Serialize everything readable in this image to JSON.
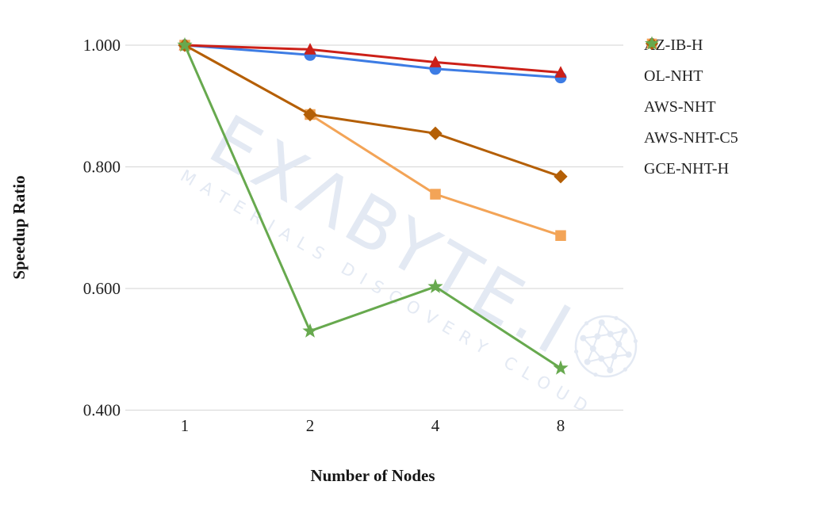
{
  "watermark": {
    "text": "EXΛBYTE.I",
    "logo": "molecule-ball",
    "subtext": "MATERIALS DISCOVERY CLOUD",
    "color": "#e3e9f3"
  },
  "legend": {
    "position": "right",
    "items": [
      "AZ-IB-H",
      "OL-NHT",
      "AWS-NHT",
      "AWS-NHT-C5",
      "GCE-NHT-H"
    ]
  },
  "chart_data": {
    "type": "line",
    "title": "",
    "xlabel": "Number of Nodes",
    "ylabel": "Speedup Ratio",
    "x_categories": [
      "1",
      "2",
      "4",
      "8"
    ],
    "ylim": [
      0.4,
      1.0
    ],
    "y_ticks": [
      {
        "label": "1.000",
        "value": 1.0
      },
      {
        "label": "0.800",
        "value": 0.8
      },
      {
        "label": "0.600",
        "value": 0.6
      },
      {
        "label": "0.400",
        "value": 0.4
      }
    ],
    "grid": "horizontal",
    "gridline_color": "#dcdcdc",
    "legend_position": "right",
    "series": [
      {
        "name": "AZ-IB-H",
        "marker": "circle",
        "color": "#3d7ce4",
        "values": [
          1.0,
          0.984,
          0.961,
          0.947
        ]
      },
      {
        "name": "OL-NHT",
        "marker": "triangle",
        "color": "#cc2018",
        "values": [
          1.0,
          0.993,
          0.972,
          0.955
        ]
      },
      {
        "name": "AWS-NHT",
        "marker": "square",
        "color": "#f3a457",
        "values": [
          1.0,
          0.886,
          0.755,
          0.687
        ]
      },
      {
        "name": "AWS-NHT-C5",
        "marker": "diamond",
        "color": "#b45f06",
        "values": [
          1.0,
          0.886,
          0.855,
          0.784
        ]
      },
      {
        "name": "GCE-NHT-H",
        "marker": "star",
        "color": "#67a94e",
        "values": [
          1.0,
          0.53,
          0.603,
          0.469
        ]
      }
    ]
  }
}
